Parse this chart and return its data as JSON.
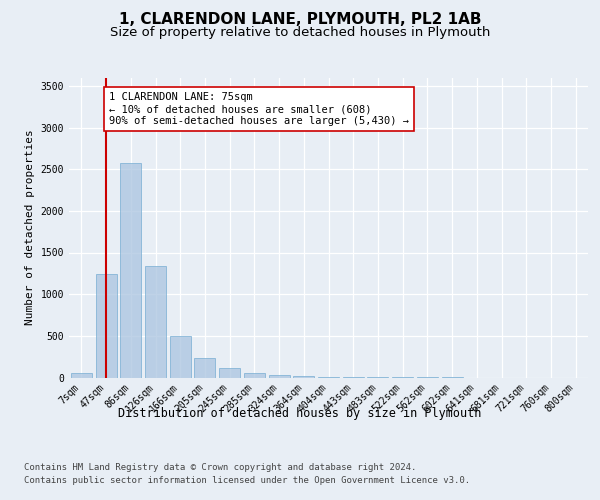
{
  "title": "1, CLARENDON LANE, PLYMOUTH, PL2 1AB",
  "subtitle": "Size of property relative to detached houses in Plymouth",
  "xlabel": "Distribution of detached houses by size in Plymouth",
  "ylabel": "Number of detached properties",
  "categories": [
    "7sqm",
    "47sqm",
    "86sqm",
    "126sqm",
    "166sqm",
    "205sqm",
    "245sqm",
    "285sqm",
    "324sqm",
    "364sqm",
    "404sqm",
    "443sqm",
    "483sqm",
    "522sqm",
    "562sqm",
    "602sqm",
    "641sqm",
    "681sqm",
    "721sqm",
    "760sqm",
    "800sqm"
  ],
  "values": [
    50,
    1240,
    2580,
    1340,
    500,
    240,
    120,
    55,
    30,
    15,
    10,
    5,
    3,
    2,
    1,
    1,
    0,
    0,
    0,
    0,
    0
  ],
  "bar_color": "#aac4e0",
  "bar_edgecolor": "#7aafd4",
  "bar_alpha": 0.75,
  "vline_x": 1,
  "vline_color": "#cc0000",
  "annotation_text": "1 CLARENDON LANE: 75sqm\n← 10% of detached houses are smaller (608)\n90% of semi-detached houses are larger (5,430) →",
  "annotation_box_color": "white",
  "annotation_box_edgecolor": "#cc0000",
  "ylim": [
    0,
    3600
  ],
  "yticks": [
    0,
    500,
    1000,
    1500,
    2000,
    2500,
    3000,
    3500
  ],
  "bg_color": "#e8eef5",
  "plot_bg_color": "#e8eef5",
  "footer_line1": "Contains HM Land Registry data © Crown copyright and database right 2024.",
  "footer_line2": "Contains public sector information licensed under the Open Government Licence v3.0.",
  "title_fontsize": 11,
  "subtitle_fontsize": 9.5,
  "xlabel_fontsize": 8.5,
  "ylabel_fontsize": 8,
  "tick_fontsize": 7,
  "footer_fontsize": 6.5,
  "annotation_fontsize": 7.5
}
